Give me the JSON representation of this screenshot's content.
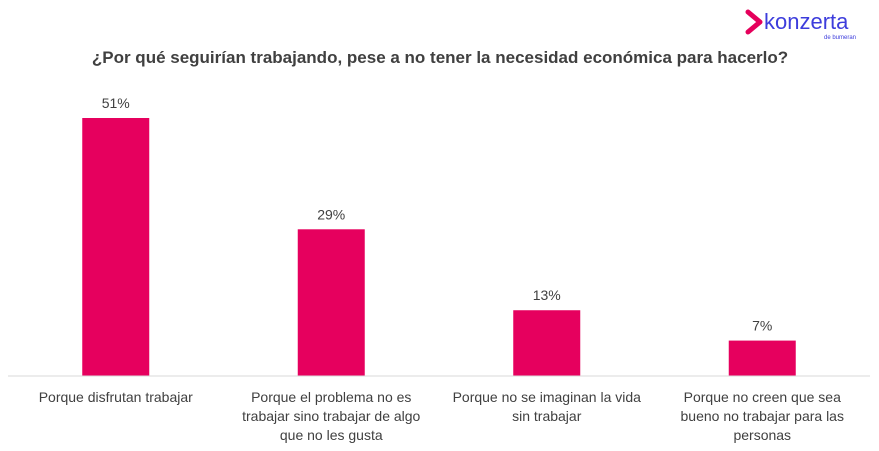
{
  "brand": {
    "name": "konzerta",
    "tagline": "de bumeran",
    "color": "#3d3ddc",
    "mark_color": "#e5005b"
  },
  "chart_data": {
    "type": "bar",
    "title": "¿Por qué seguirían trabajando, pese a no tener la necesidad económica para hacerlo?",
    "xlabel": "",
    "ylabel": "",
    "categories": [
      "Porque disfrutan trabajar",
      "Porque el problema no es trabajar sino trabajar de algo que no les gusta",
      "Porque no se imaginan la vida sin trabajar",
      "Porque no creen que sea bueno no trabajar para las personas"
    ],
    "values": [
      51,
      29,
      13,
      7
    ],
    "value_labels": [
      "51%",
      "29%",
      "13%",
      "7%"
    ],
    "ylim": [
      0,
      60
    ],
    "bar_color": "#e6005e",
    "grid": false,
    "legend": "none"
  }
}
